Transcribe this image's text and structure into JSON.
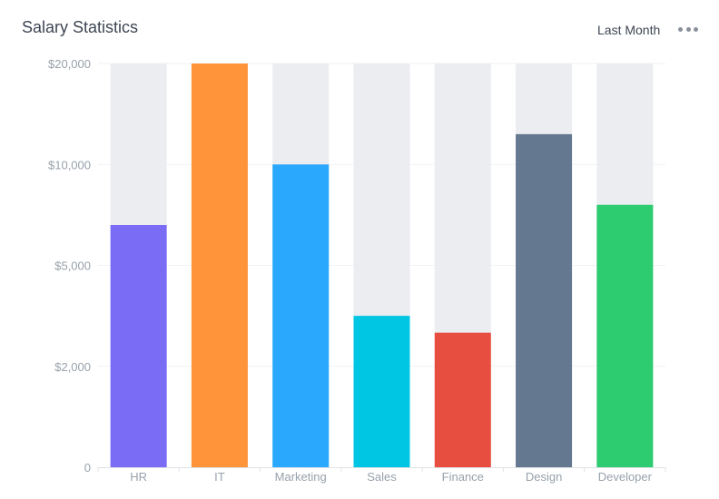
{
  "header": {
    "title": "Salary Statistics",
    "period_label": "Last Month",
    "more_icon": "more-horizontal-icon"
  },
  "chart_data": {
    "type": "bar",
    "title": "Salary Statistics",
    "xlabel": "",
    "ylabel": "",
    "y_scale": "nonlinear (tick labels $0 – $20,000)",
    "y_ticks": [
      "0",
      "$2,000",
      "$5,000",
      "$10,000",
      "$20,000"
    ],
    "y_tick_values": [
      0,
      2000,
      5000,
      10000,
      20000
    ],
    "ylim": [
      0,
      20000
    ],
    "categories": [
      "HR",
      "IT",
      "Marketing",
      "Sales",
      "Finance",
      "Design",
      "Developer"
    ],
    "values": [
      7000,
      20000,
      10000,
      3500,
      3000,
      13000,
      8000
    ],
    "colors": [
      "#7b6cf6",
      "#ff943b",
      "#2aa8fd",
      "#00c6e3",
      "#e84e3f",
      "#64788f",
      "#2dcc70"
    ],
    "track_color": "#ebedf0",
    "grid": true,
    "legend": "none"
  }
}
